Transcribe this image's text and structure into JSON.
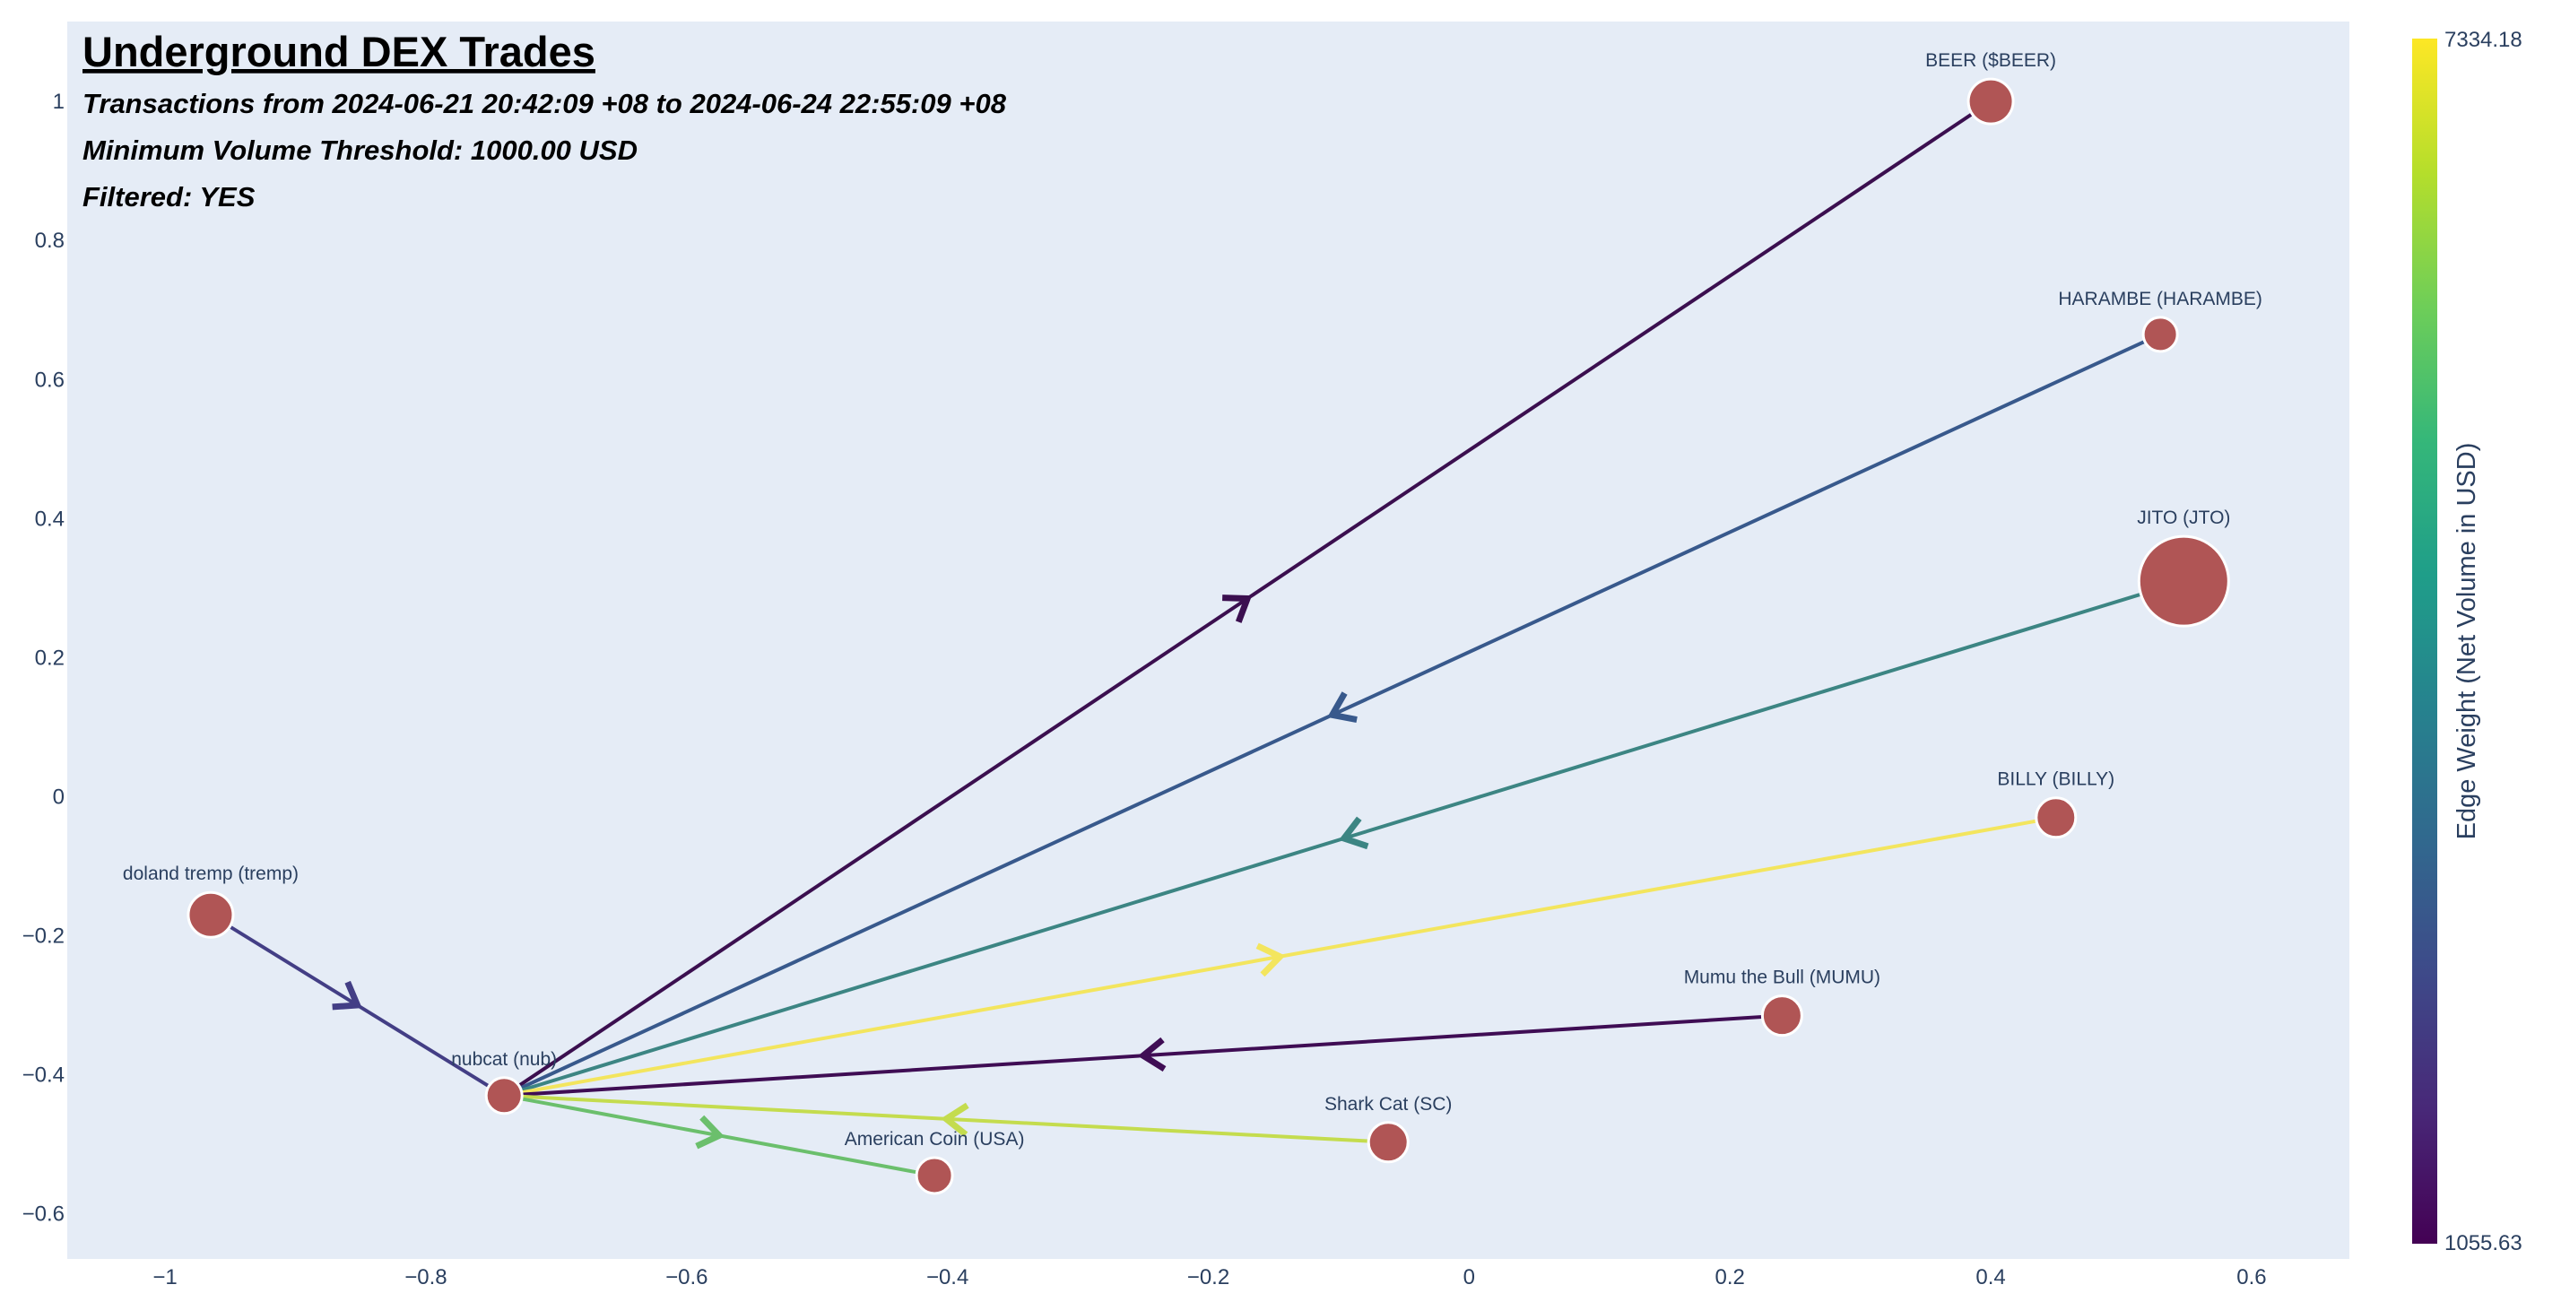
{
  "chart_data": {
    "type": "network",
    "title": "Underground DEX Trades",
    "subtitle_lines": [
      "Transactions from 2024-06-21 20:42:09 +08 to 2024-06-24 22:55:09 +08",
      "Minimum Volume Threshold: 1000.00 USD",
      "Filtered: YES"
    ],
    "xlim": [
      -1.075,
      0.675
    ],
    "ylim": [
      -0.665,
      1.115
    ],
    "x_ticks": [
      -1,
      -0.8,
      -0.6,
      -0.4,
      -0.2,
      0,
      0.2,
      0.4,
      0.6
    ],
    "x_tick_labels": [
      "−1",
      "−0.8",
      "−0.6",
      "−0.4",
      "−0.2",
      "0",
      "0.2",
      "0.4",
      "0.6"
    ],
    "y_ticks": [
      -0.6,
      -0.4,
      -0.2,
      0,
      0.2,
      0.4,
      0.6,
      0.8,
      1
    ],
    "y_tick_labels": [
      "−0.6",
      "−0.4",
      "−0.2",
      "0",
      "0.2",
      "0.4",
      "0.6",
      "0.8",
      "1"
    ],
    "grid": false,
    "plot_bg": "#e5ecf6",
    "node_color": "#b05555",
    "nodes": [
      {
        "id": "nub",
        "label": "nubcat (nub)",
        "x": -0.74,
        "y": -0.43,
        "size": 40
      },
      {
        "id": "tremp",
        "label": "doland tremp (tremp)",
        "x": -0.965,
        "y": -0.17,
        "size": 50
      },
      {
        "id": "beer",
        "label": "BEER ($BEER)",
        "x": 0.4,
        "y": 1.0,
        "size": 50
      },
      {
        "id": "harambe",
        "label": "HARAMBE (HARAMBE)",
        "x": 0.53,
        "y": 0.665,
        "size": 38
      },
      {
        "id": "jto",
        "label": "JITO (JTO)",
        "x": 0.548,
        "y": 0.31,
        "size": 100
      },
      {
        "id": "billy",
        "label": "BILLY (BILLY)",
        "x": 0.45,
        "y": -0.03,
        "size": 44
      },
      {
        "id": "mumu",
        "label": "Mumu the Bull (MUMU)",
        "x": 0.24,
        "y": -0.315,
        "size": 44
      },
      {
        "id": "sc",
        "label": "Shark Cat (SC)",
        "x": -0.062,
        "y": -0.497,
        "size": 44
      },
      {
        "id": "usa",
        "label": "American Coin (USA)",
        "x": -0.41,
        "y": -0.545,
        "size": 40
      }
    ],
    "edges": [
      {
        "from": "tremp",
        "to": "nub",
        "weight": 2400,
        "color": "#433e85"
      },
      {
        "from": "nub",
        "to": "beer",
        "weight": 1055.63,
        "color": "#3b0f4f"
      },
      {
        "from": "harambe",
        "to": "nub",
        "weight": 3000,
        "color": "#38598c"
      },
      {
        "from": "jto",
        "to": "nub",
        "weight": 4100,
        "color": "#3c8583"
      },
      {
        "from": "nub",
        "to": "billy",
        "weight": 7334.18,
        "color": "#f3e55e"
      },
      {
        "from": "mumu",
        "to": "nub",
        "weight": 1150,
        "color": "#3f0d54"
      },
      {
        "from": "sc",
        "to": "nub",
        "weight": 6800,
        "color": "#c4dc4e"
      },
      {
        "from": "nub",
        "to": "usa",
        "weight": 5500,
        "color": "#6bbf6c"
      }
    ],
    "colorbar": {
      "title": "Edge Weight (Net Volume in USD)",
      "min": 1055.63,
      "max": 7334.18,
      "min_label": "1055.63",
      "max_label": "7334.18",
      "colorscale": [
        "#440154",
        "#482878",
        "#3e4989",
        "#31688e",
        "#26828e",
        "#1f9e89",
        "#35b779",
        "#6ece58",
        "#b5de2b",
        "#fde725"
      ]
    }
  }
}
